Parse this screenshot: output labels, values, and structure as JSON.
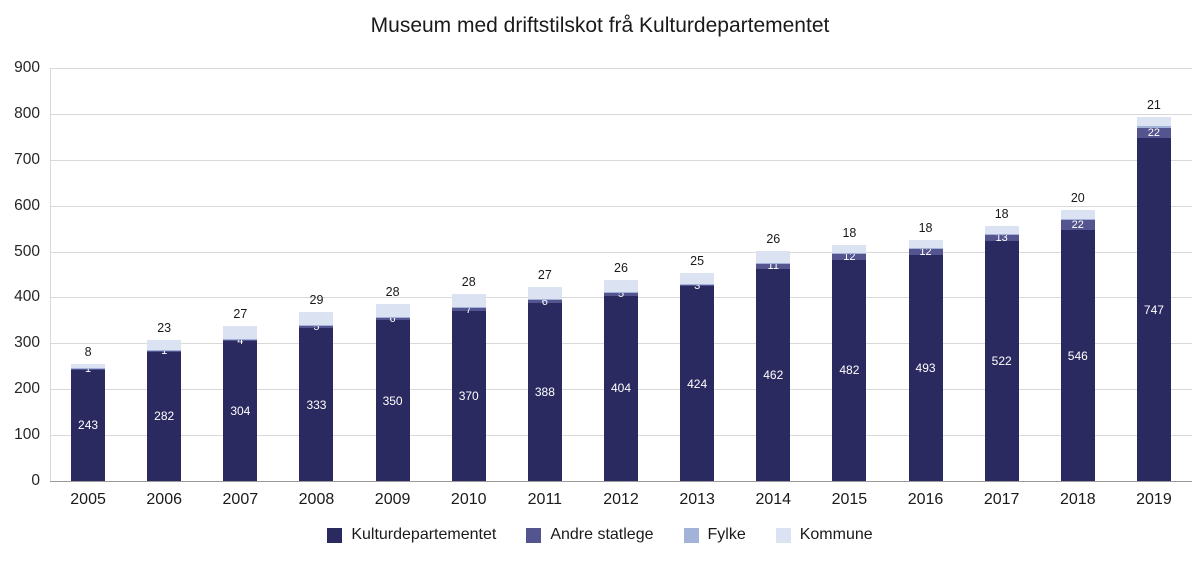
{
  "chart_data": {
    "type": "bar",
    "stacked": true,
    "title": "Museum med driftstilskot frå Kulturdepartementet",
    "categories": [
      "2005",
      "2006",
      "2007",
      "2008",
      "2009",
      "2010",
      "2011",
      "2012",
      "2013",
      "2014",
      "2015",
      "2016",
      "2017",
      "2018",
      "2019"
    ],
    "series": [
      {
        "name": "Kulturdepartementet",
        "color": "#2b2a60",
        "values": [
          243,
          282,
          304,
          333,
          350,
          370,
          388,
          404,
          424,
          462,
          482,
          493,
          522,
          546,
          747
        ],
        "labels_visible": true
      },
      {
        "name": "Andre statlege",
        "color": "#54548e",
        "values": [
          1,
          1,
          4,
          5,
          6,
          7,
          6,
          5,
          3,
          11,
          12,
          12,
          13,
          22,
          22
        ],
        "labels_visible": true
      },
      {
        "name": "Fylke",
        "color": "#a3b2d9",
        "values": [
          2,
          2,
          2,
          2,
          2,
          2,
          2,
          2,
          2,
          3,
          3,
          3,
          3,
          3,
          4
        ],
        "labels_visible": false
      },
      {
        "name": "Kommune",
        "color": "#dbe2f2",
        "values": [
          8,
          23,
          27,
          29,
          28,
          28,
          27,
          26,
          25,
          26,
          18,
          18,
          18,
          20,
          21
        ],
        "labels_visible": true,
        "label_position": "above"
      }
    ],
    "ylim": [
      0,
      900
    ],
    "ytick_step": 100,
    "grid": true,
    "legend_position": "bottom",
    "background": "#ffffff",
    "gridline_color": "#d9d9d9"
  }
}
